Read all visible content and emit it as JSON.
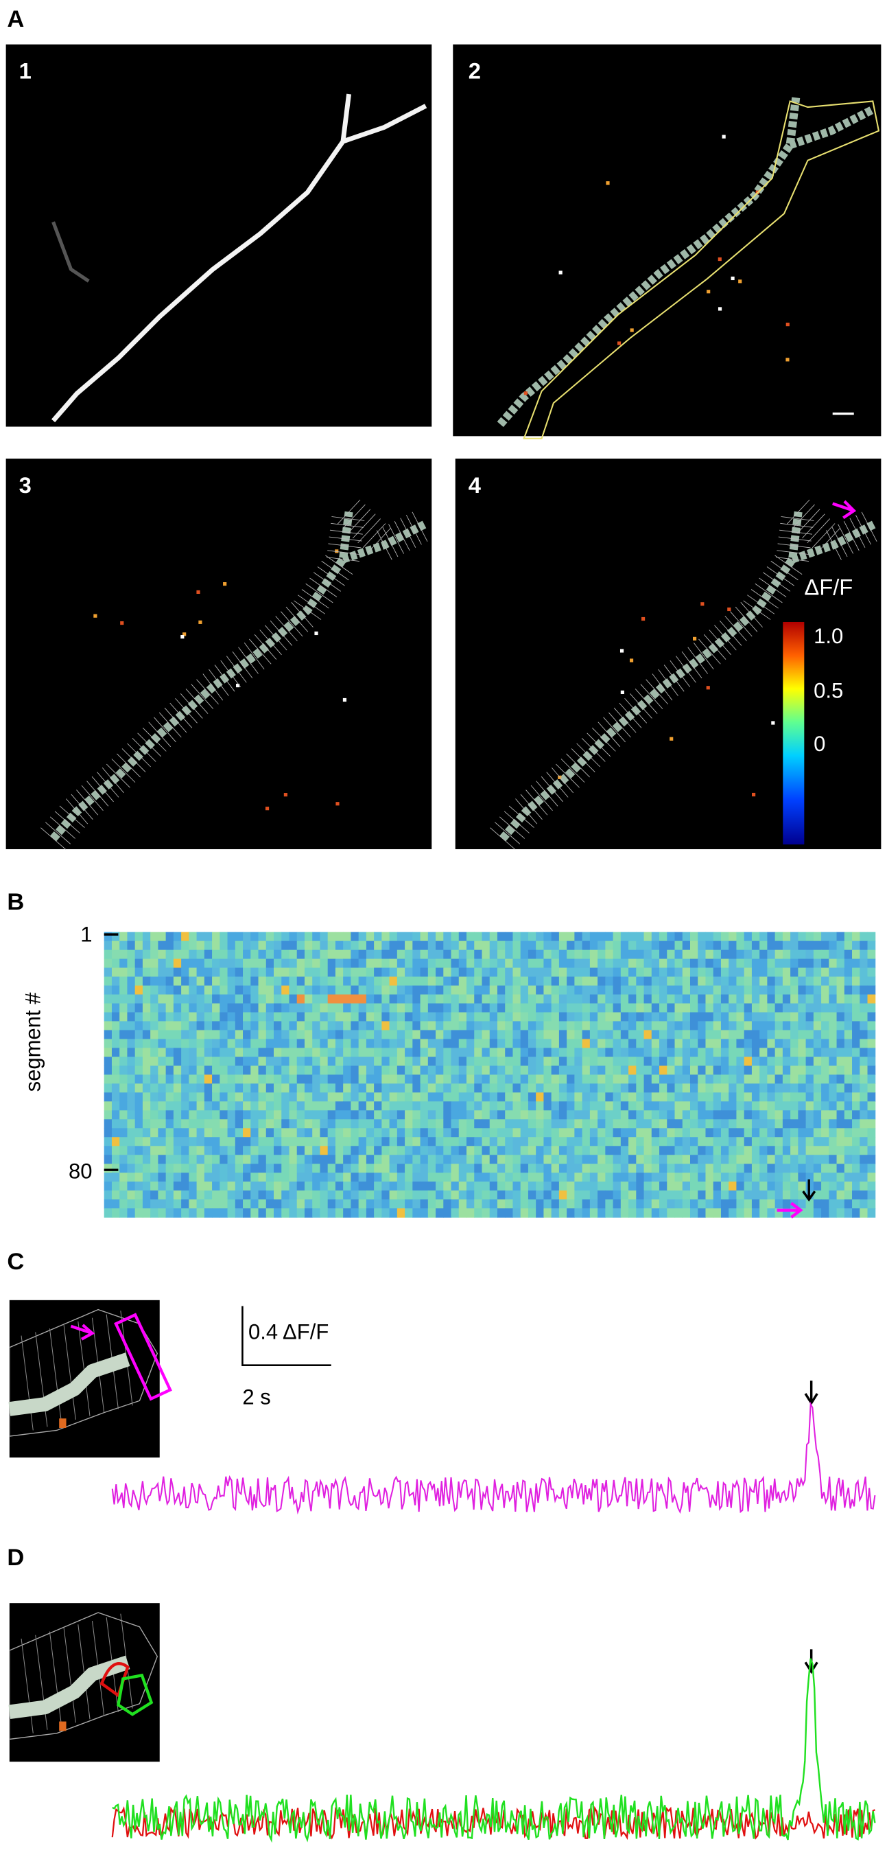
{
  "panels": {
    "A": {
      "label": "A",
      "images": [
        {
          "label": "1"
        },
        {
          "label": "2"
        },
        {
          "label": "3"
        },
        {
          "label": "4"
        }
      ],
      "colorbar": {
        "title": "ΔF/F",
        "ticks": [
          "1.0",
          "0.5",
          "0"
        ]
      }
    },
    "B": {
      "label": "B",
      "y_axis_label": "segment #",
      "y_ticks": [
        "1",
        "80"
      ]
    },
    "C": {
      "label": "C",
      "scale_bar": {
        "y": "0.4 ΔF/F",
        "x": "2 s"
      }
    },
    "D": {
      "label": "D"
    }
  }
}
